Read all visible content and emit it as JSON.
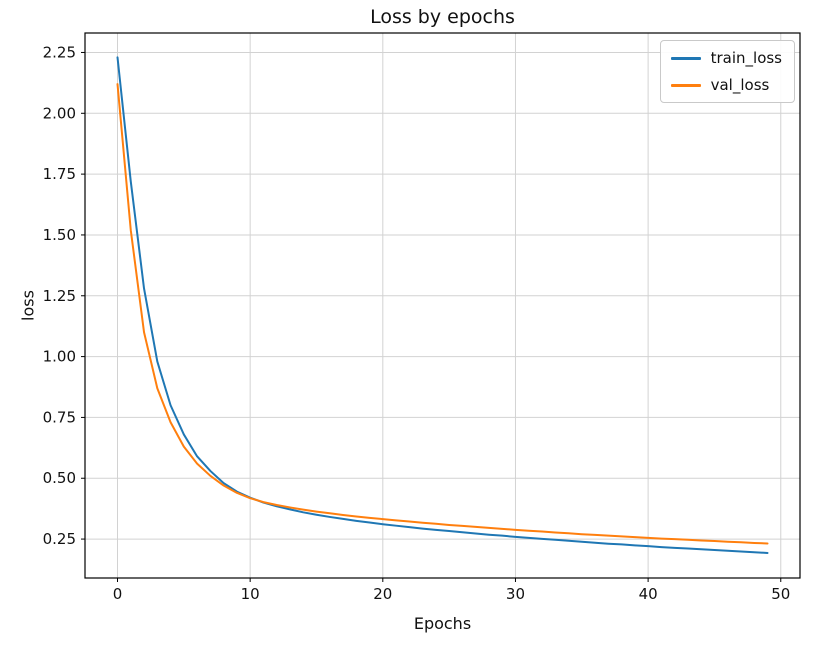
{
  "chart_data": {
    "type": "line",
    "title": "Loss by epochs",
    "xlabel": "Epochs",
    "ylabel": "loss",
    "grid": true,
    "grid_color": "#d2d2d2",
    "legend_position": "upper right",
    "xlim": [
      -2.45,
      51.45
    ],
    "ylim": [
      0.09,
      2.33
    ],
    "xticks": [
      0,
      10,
      20,
      30,
      40,
      50
    ],
    "yticks": [
      0.25,
      0.5,
      0.75,
      1.0,
      1.25,
      1.5,
      1.75,
      2.0,
      2.25
    ],
    "x": [
      0,
      1,
      2,
      3,
      4,
      5,
      6,
      7,
      8,
      9,
      10,
      11,
      12,
      13,
      14,
      15,
      16,
      17,
      18,
      19,
      20,
      21,
      22,
      23,
      24,
      25,
      26,
      27,
      28,
      29,
      30,
      31,
      32,
      33,
      34,
      35,
      36,
      37,
      38,
      39,
      40,
      41,
      42,
      43,
      44,
      45,
      46,
      47,
      48,
      49
    ],
    "series": [
      {
        "name": "train_loss",
        "color": "#1f77b4",
        "values": [
          2.23,
          1.72,
          1.28,
          0.98,
          0.8,
          0.68,
          0.59,
          0.53,
          0.48,
          0.445,
          0.42,
          0.4,
          0.385,
          0.372,
          0.36,
          0.35,
          0.341,
          0.333,
          0.325,
          0.318,
          0.311,
          0.305,
          0.299,
          0.293,
          0.288,
          0.283,
          0.278,
          0.273,
          0.268,
          0.264,
          0.259,
          0.255,
          0.251,
          0.247,
          0.243,
          0.239,
          0.235,
          0.231,
          0.228,
          0.224,
          0.221,
          0.217,
          0.214,
          0.211,
          0.208,
          0.205,
          0.202,
          0.199,
          0.196,
          0.193
        ]
      },
      {
        "name": "val_loss",
        "color": "#ff7f0e",
        "values": [
          2.12,
          1.52,
          1.1,
          0.87,
          0.73,
          0.63,
          0.56,
          0.51,
          0.47,
          0.44,
          0.418,
          0.402,
          0.39,
          0.38,
          0.371,
          0.363,
          0.356,
          0.349,
          0.343,
          0.337,
          0.332,
          0.327,
          0.322,
          0.317,
          0.313,
          0.308,
          0.304,
          0.3,
          0.296,
          0.292,
          0.288,
          0.284,
          0.281,
          0.277,
          0.274,
          0.27,
          0.267,
          0.264,
          0.261,
          0.258,
          0.255,
          0.252,
          0.25,
          0.247,
          0.244,
          0.242,
          0.239,
          0.237,
          0.234,
          0.232
        ]
      }
    ]
  }
}
